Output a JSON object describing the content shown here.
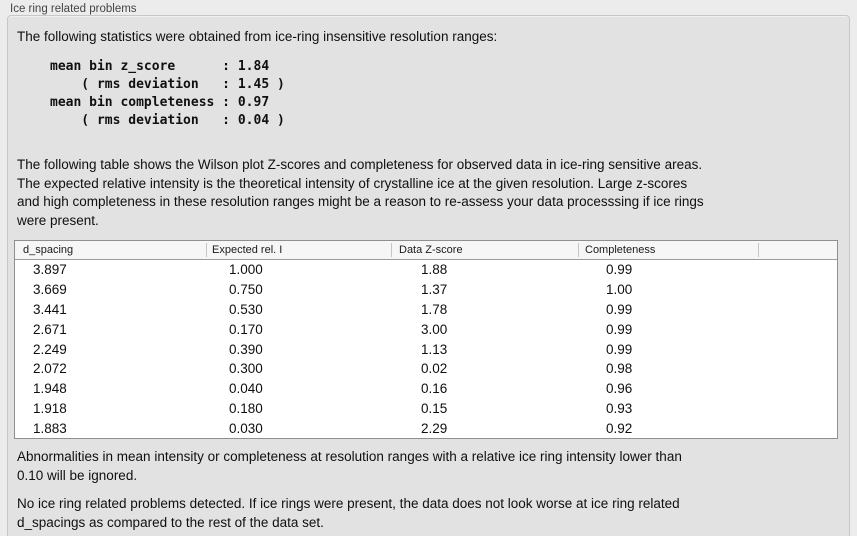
{
  "panel": {
    "title": "Ice ring related problems"
  },
  "intro": "The following statistics were obtained from ice-ring insensitive resolution ranges:",
  "stats": {
    "lines": [
      "mean bin z_score      : 1.84",
      "    ( rms deviation   : 1.45 )",
      "mean bin completeness : 0.97",
      "    ( rms deviation   : 0.04 )"
    ]
  },
  "description": {
    "lines": [
      "The following table shows the Wilson plot Z-scores and completeness for observed data in ice-ring sensitive areas.",
      "The expected relative intensity is the theoretical intensity of crystalline ice at the given resolution. Large z-scores",
      "and high completeness in these resolution ranges might be a reason to re-assess your data processsing if ice rings",
      "were present."
    ]
  },
  "table": {
    "columns": [
      "d_spacing",
      "Expected rel. I",
      "Data Z-score",
      "Completeness"
    ],
    "rows": [
      [
        "3.897",
        "1.000",
        "1.88",
        "0.99"
      ],
      [
        "3.669",
        "0.750",
        "1.37",
        "1.00"
      ],
      [
        "3.441",
        "0.530",
        "1.78",
        "0.99"
      ],
      [
        "2.671",
        "0.170",
        "3.00",
        "0.99"
      ],
      [
        "2.249",
        "0.390",
        "1.13",
        "0.99"
      ],
      [
        "2.072",
        "0.300",
        "0.02",
        "0.98"
      ],
      [
        "1.948",
        "0.040",
        "0.16",
        "0.96"
      ],
      [
        "1.918",
        "0.180",
        "0.15",
        "0.93"
      ],
      [
        "1.883",
        "0.030",
        "2.29",
        "0.92"
      ]
    ]
  },
  "note": {
    "lines": [
      "Abnormalities in mean intensity or completeness at resolution ranges with a relative ice ring intensity lower than",
      "0.10 will be ignored."
    ]
  },
  "conclusion": {
    "lines": [
      "No ice ring related problems detected. If ice rings were present, the data does not look worse at ice ring related",
      "d_spacings as compared to the rest of the data set."
    ]
  },
  "colors": {
    "page_background": "#ececec",
    "panel_background": "#e2e2e2",
    "panel_border": "#c7c7c7",
    "table_border": "#8f8f8f",
    "table_header_background": "#f6f6f6",
    "text": "#0f0f0f"
  }
}
